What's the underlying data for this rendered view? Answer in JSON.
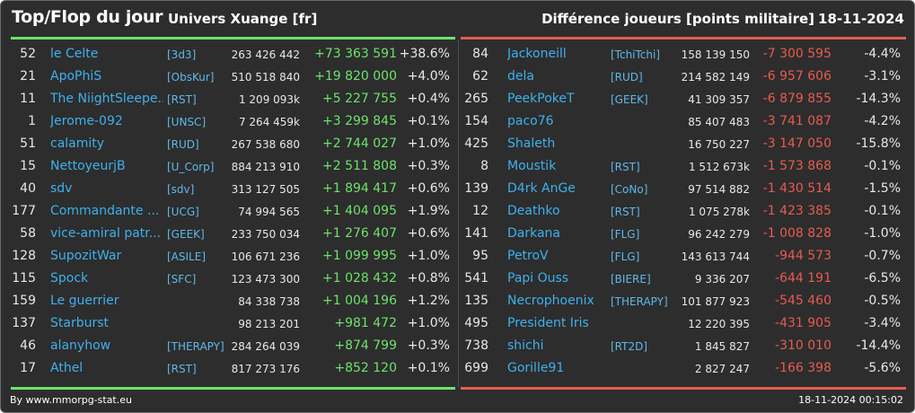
{
  "header": {
    "title": "Top/Flop du jour",
    "server": "Univers Xuange [fr]",
    "subtitle": "Différence joueurs [points militaire]",
    "date": "18-11-2024"
  },
  "colors": {
    "positive": "#6ce36c",
    "negative": "#e65b50",
    "name": "#3fb0ec",
    "background": "#2d2d2d"
  },
  "top": [
    {
      "rank": "52",
      "name": "le Celte",
      "alliance": "[3d3]",
      "points": "263 426 442",
      "diff": "+73 363 591",
      "pct": "+38.6%"
    },
    {
      "rank": "21",
      "name": "ApoPhiS",
      "alliance": "[ObsKur]",
      "points": "510 518 840",
      "diff": "+19 820 000",
      "pct": "+4.0%"
    },
    {
      "rank": "11",
      "name": "The NiightSleepe...",
      "alliance": "[RST]",
      "points": "1 209 093k",
      "diff": "+5 227 755",
      "pct": "+0.4%"
    },
    {
      "rank": "1",
      "name": "Jerome-092",
      "alliance": "[UNSC]",
      "points": "7 264 459k",
      "diff": "+3 299 845",
      "pct": "+0.1%"
    },
    {
      "rank": "51",
      "name": "calamity",
      "alliance": "[RUD]",
      "points": "267 538 680",
      "diff": "+2 744 027",
      "pct": "+1.0%"
    },
    {
      "rank": "15",
      "name": "NettoyeurjB",
      "alliance": "[U_Corp]",
      "points": "884 213 910",
      "diff": "+2 511 808",
      "pct": "+0.3%"
    },
    {
      "rank": "40",
      "name": "sdv",
      "alliance": "[sdv]",
      "points": "313 127 505",
      "diff": "+1 894 417",
      "pct": "+0.6%"
    },
    {
      "rank": "177",
      "name": "Commandante ...",
      "alliance": "[UCG]",
      "points": "74 994 565",
      "diff": "+1 404 095",
      "pct": "+1.9%"
    },
    {
      "rank": "58",
      "name": "vice-amiral patr...",
      "alliance": "[GEEK]",
      "points": "233 750 034",
      "diff": "+1 276 407",
      "pct": "+0.6%"
    },
    {
      "rank": "128",
      "name": "SupozitWar",
      "alliance": "[ASILE]",
      "points": "106 671 236",
      "diff": "+1 099 995",
      "pct": "+1.0%"
    },
    {
      "rank": "115",
      "name": "Spock",
      "alliance": "[SFC]",
      "points": "123 473 300",
      "diff": "+1 028 432",
      "pct": "+0.8%"
    },
    {
      "rank": "159",
      "name": "Le guerrier",
      "alliance": "",
      "points": "84 338 738",
      "diff": "+1 004 196",
      "pct": "+1.2%"
    },
    {
      "rank": "137",
      "name": "Starburst",
      "alliance": "",
      "points": "98 213 201",
      "diff": "+981 472",
      "pct": "+1.0%"
    },
    {
      "rank": "46",
      "name": "alanyhow",
      "alliance": "[THERAPY]",
      "points": "284 264 039",
      "diff": "+874 799",
      "pct": "+0.3%"
    },
    {
      "rank": "17",
      "name": "Athel",
      "alliance": "[RST]",
      "points": "817 273 176",
      "diff": "+852 120",
      "pct": "+0.1%"
    }
  ],
  "flop": [
    {
      "rank": "84",
      "name": "Jackoneill",
      "alliance": "[TchiTchi]",
      "points": "158 139 150",
      "diff": "-7 300 595",
      "pct": "-4.4%"
    },
    {
      "rank": "62",
      "name": "dela",
      "alliance": "[RUD]",
      "points": "214 582 149",
      "diff": "-6 957 606",
      "pct": "-3.1%"
    },
    {
      "rank": "265",
      "name": "PeekPokeT",
      "alliance": "[GEEK]",
      "points": "41 309 357",
      "diff": "-6 879 855",
      "pct": "-14.3%"
    },
    {
      "rank": "154",
      "name": "paco76",
      "alliance": "",
      "points": "85 407 483",
      "diff": "-3 741 087",
      "pct": "-4.2%"
    },
    {
      "rank": "425",
      "name": "Shaleth",
      "alliance": "",
      "points": "16 750 227",
      "diff": "-3 147 050",
      "pct": "-15.8%"
    },
    {
      "rank": "8",
      "name": "Moustik",
      "alliance": "[RST]",
      "points": "1 512 673k",
      "diff": "-1 573 868",
      "pct": "-0.1%"
    },
    {
      "rank": "139",
      "name": "D4rk AnGe",
      "alliance": "[CoNo]",
      "points": "97 514 882",
      "diff": "-1 430 514",
      "pct": "-1.5%"
    },
    {
      "rank": "12",
      "name": "Deathko",
      "alliance": "[RST]",
      "points": "1 075 278k",
      "diff": "-1 423 385",
      "pct": "-0.1%"
    },
    {
      "rank": "141",
      "name": "Darkana",
      "alliance": "[FLG]",
      "points": "96 242 279",
      "diff": "-1 008 828",
      "pct": "-1.0%"
    },
    {
      "rank": "95",
      "name": "PetroV",
      "alliance": "[FLG]",
      "points": "143 613 744",
      "diff": "-944 573",
      "pct": "-0.7%"
    },
    {
      "rank": "541",
      "name": "Papi Ouss",
      "alliance": "[BIERE]",
      "points": "9 336 207",
      "diff": "-644 191",
      "pct": "-6.5%"
    },
    {
      "rank": "135",
      "name": "Necrophoenix",
      "alliance": "[THERAPY]",
      "points": "101 877 923",
      "diff": "-545 460",
      "pct": "-0.5%"
    },
    {
      "rank": "495",
      "name": "President Iris",
      "alliance": "",
      "points": "12 220 395",
      "diff": "-431 905",
      "pct": "-3.4%"
    },
    {
      "rank": "738",
      "name": "shichi",
      "alliance": "[RT2D]",
      "points": "1 845 827",
      "diff": "-310 010",
      "pct": "-14.4%"
    },
    {
      "rank": "699",
      "name": "Gorille91",
      "alliance": "",
      "points": "2 827 247",
      "diff": "-166 398",
      "pct": "-5.6%"
    }
  ],
  "footer": {
    "credit": "By www.mmorpg-stat.eu",
    "timestamp": "18-11-2024 00:15:02"
  }
}
